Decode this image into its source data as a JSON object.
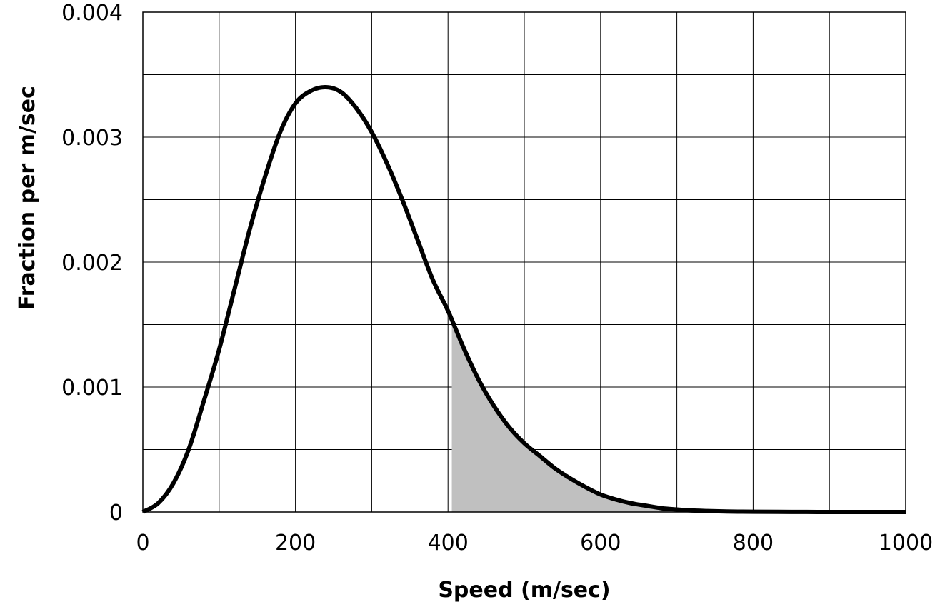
{
  "chart_data": {
    "type": "line",
    "title": "",
    "xlabel": "Speed (m/sec)",
    "ylabel": "Fraction per m/sec",
    "xlim": [
      0,
      1000
    ],
    "ylim": [
      0,
      0.004
    ],
    "x_ticks": [
      0,
      200,
      400,
      600,
      800,
      1000
    ],
    "x_tick_labels": [
      "0",
      "200",
      "400",
      "600",
      "800",
      "1000"
    ],
    "y_ticks": [
      0,
      0.001,
      0.002,
      0.003,
      0.004
    ],
    "y_tick_labels": [
      "0",
      "0.001",
      "0.002",
      "0.003",
      "0.004"
    ],
    "grid": true,
    "x_grid_step": 100,
    "y_grid_step": 0.0005,
    "legend": "none",
    "series": [
      {
        "x": [
          0,
          20,
          40,
          60,
          80,
          100,
          120,
          140,
          160,
          180,
          200,
          220,
          240,
          260,
          280,
          300,
          320,
          340,
          360,
          380,
          400,
          420,
          440,
          460,
          480,
          500,
          520,
          540,
          560,
          580,
          600,
          620,
          640,
          660,
          680,
          700,
          720,
          740,
          760,
          780,
          800,
          850,
          900,
          950,
          1000
        ],
        "values": [
          0,
          7e-05,
          0.00023,
          0.0005,
          0.00089,
          0.0013,
          0.00178,
          0.00226,
          0.00268,
          0.00304,
          0.00327,
          0.00337,
          0.0034,
          0.00336,
          0.00323,
          0.00304,
          0.00279,
          0.0025,
          0.00218,
          0.00186,
          0.00161,
          0.00132,
          0.00106,
          0.00085,
          0.00068,
          0.00055,
          0.00045,
          0.00035,
          0.00027,
          0.0002,
          0.00014,
          0.0001,
          7e-05,
          5e-05,
          3e-05,
          2e-05,
          1.2e-05,
          8e-06,
          5e-06,
          3e-06,
          2e-06,
          1e-06,
          0,
          0,
          0
        ]
      }
    ],
    "shaded_region": {
      "from_x": 405,
      "to_x": 1000
    },
    "colors": {
      "line": "#000000",
      "shade": "#c0c0c0",
      "grid": "#000000"
    }
  }
}
